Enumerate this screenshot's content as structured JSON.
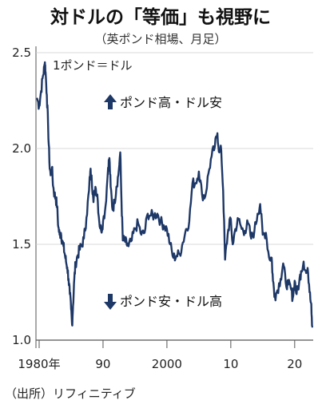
{
  "chart_data": {
    "type": "line",
    "title": "対ドルの「等価」も視野に",
    "subtitle": "（英ポンド相場、月足）",
    "unit_label": "1ポンド＝ドル",
    "source": "（出所）リフィニティブ",
    "annotations": {
      "up": "ポンド高・ドル安",
      "down": "ポンド安・ドル高"
    },
    "x_tick_labels": [
      "1980年",
      "90",
      "2000",
      "10",
      "20"
    ],
    "x_ticks": [
      1980,
      1990,
      2000,
      2010,
      2020
    ],
    "y_tick_labels": [
      "1.0",
      "1.5",
      "2.0",
      "2.5"
    ],
    "y_ticks": [
      1.0,
      1.5,
      2.0,
      2.5
    ],
    "ylim": [
      1.0,
      2.5
    ],
    "xlim": [
      1979.5,
      2022.9
    ],
    "colors": {
      "line": "#1d3766",
      "axis": "#555555",
      "grid": "#cccccc"
    },
    "series": [
      {
        "points": [
          [
            1979.7,
            2.26
          ],
          [
            1980.0,
            2.22
          ],
          [
            1980.3,
            2.3
          ],
          [
            1980.6,
            2.38
          ],
          [
            1980.8,
            2.42
          ],
          [
            1980.9,
            2.45
          ],
          [
            1981.0,
            2.4
          ],
          [
            1981.2,
            2.28
          ],
          [
            1981.4,
            2.12
          ],
          [
            1981.6,
            1.93
          ],
          [
            1981.8,
            1.86
          ],
          [
            1982.0,
            1.9
          ],
          [
            1982.2,
            1.8
          ],
          [
            1982.4,
            1.76
          ],
          [
            1982.6,
            1.74
          ],
          [
            1982.8,
            1.7
          ],
          [
            1983.0,
            1.59
          ],
          [
            1983.2,
            1.55
          ],
          [
            1983.4,
            1.56
          ],
          [
            1983.6,
            1.52
          ],
          [
            1983.8,
            1.49
          ],
          [
            1984.0,
            1.45
          ],
          [
            1984.2,
            1.41
          ],
          [
            1984.4,
            1.38
          ],
          [
            1984.6,
            1.32
          ],
          [
            1984.8,
            1.24
          ],
          [
            1985.0,
            1.16
          ],
          [
            1985.15,
            1.08
          ],
          [
            1985.3,
            1.18
          ],
          [
            1985.5,
            1.32
          ],
          [
            1985.7,
            1.4
          ],
          [
            1986.0,
            1.44
          ],
          [
            1986.3,
            1.47
          ],
          [
            1986.6,
            1.49
          ],
          [
            1987.0,
            1.53
          ],
          [
            1987.4,
            1.64
          ],
          [
            1987.8,
            1.78
          ],
          [
            1988.0,
            1.88
          ],
          [
            1988.2,
            1.86
          ],
          [
            1988.5,
            1.72
          ],
          [
            1988.8,
            1.8
          ],
          [
            1989.1,
            1.76
          ],
          [
            1989.4,
            1.62
          ],
          [
            1989.7,
            1.57
          ],
          [
            1990.0,
            1.62
          ],
          [
            1990.4,
            1.7
          ],
          [
            1990.8,
            1.9
          ],
          [
            1991.0,
            1.95
          ],
          [
            1991.2,
            1.8
          ],
          [
            1991.5,
            1.68
          ],
          [
            1991.8,
            1.72
          ],
          [
            1992.1,
            1.8
          ],
          [
            1992.4,
            1.86
          ],
          [
            1992.7,
            1.98
          ],
          [
            1992.9,
            1.72
          ],
          [
            1993.1,
            1.52
          ],
          [
            1993.4,
            1.52
          ],
          [
            1993.7,
            1.5
          ],
          [
            1994.0,
            1.49
          ],
          [
            1994.5,
            1.52
          ],
          [
            1995.0,
            1.58
          ],
          [
            1995.5,
            1.61
          ],
          [
            1996.0,
            1.55
          ],
          [
            1996.5,
            1.56
          ],
          [
            1997.0,
            1.66
          ],
          [
            1997.5,
            1.65
          ],
          [
            1998.0,
            1.65
          ],
          [
            1998.5,
            1.66
          ],
          [
            1999.0,
            1.62
          ],
          [
            1999.5,
            1.6
          ],
          [
            2000.0,
            1.58
          ],
          [
            2000.5,
            1.5
          ],
          [
            2001.0,
            1.43
          ],
          [
            2001.5,
            1.44
          ],
          [
            2002.0,
            1.45
          ],
          [
            2002.5,
            1.51
          ],
          [
            2003.0,
            1.58
          ],
          [
            2003.5,
            1.62
          ],
          [
            2004.0,
            1.82
          ],
          [
            2004.5,
            1.82
          ],
          [
            2005.0,
            1.88
          ],
          [
            2005.5,
            1.76
          ],
          [
            2006.0,
            1.75
          ],
          [
            2006.5,
            1.87
          ],
          [
            2007.0,
            1.96
          ],
          [
            2007.5,
            2.01
          ],
          [
            2007.9,
            2.08
          ],
          [
            2008.2,
            1.98
          ],
          [
            2008.5,
            1.99
          ],
          [
            2008.8,
            1.78
          ],
          [
            2009.1,
            1.42
          ],
          [
            2009.5,
            1.55
          ],
          [
            2009.9,
            1.64
          ],
          [
            2010.3,
            1.5
          ],
          [
            2010.7,
            1.58
          ],
          [
            2011.2,
            1.63
          ],
          [
            2011.7,
            1.58
          ],
          [
            2012.2,
            1.57
          ],
          [
            2012.7,
            1.61
          ],
          [
            2013.2,
            1.53
          ],
          [
            2013.7,
            1.57
          ],
          [
            2014.2,
            1.66
          ],
          [
            2014.6,
            1.71
          ],
          [
            2015.0,
            1.55
          ],
          [
            2015.5,
            1.56
          ],
          [
            2016.0,
            1.43
          ],
          [
            2016.4,
            1.43
          ],
          [
            2016.6,
            1.31
          ],
          [
            2016.9,
            1.23
          ],
          [
            2017.3,
            1.26
          ],
          [
            2017.8,
            1.32
          ],
          [
            2018.2,
            1.4
          ],
          [
            2018.6,
            1.3
          ],
          [
            2019.0,
            1.29
          ],
          [
            2019.4,
            1.27
          ],
          [
            2019.7,
            1.22
          ],
          [
            2020.0,
            1.31
          ],
          [
            2020.3,
            1.24
          ],
          [
            2020.7,
            1.3
          ],
          [
            2021.0,
            1.36
          ],
          [
            2021.4,
            1.41
          ],
          [
            2021.8,
            1.35
          ],
          [
            2022.1,
            1.35
          ],
          [
            2022.4,
            1.25
          ],
          [
            2022.6,
            1.19
          ],
          [
            2022.75,
            1.07
          ]
        ]
      }
    ]
  }
}
